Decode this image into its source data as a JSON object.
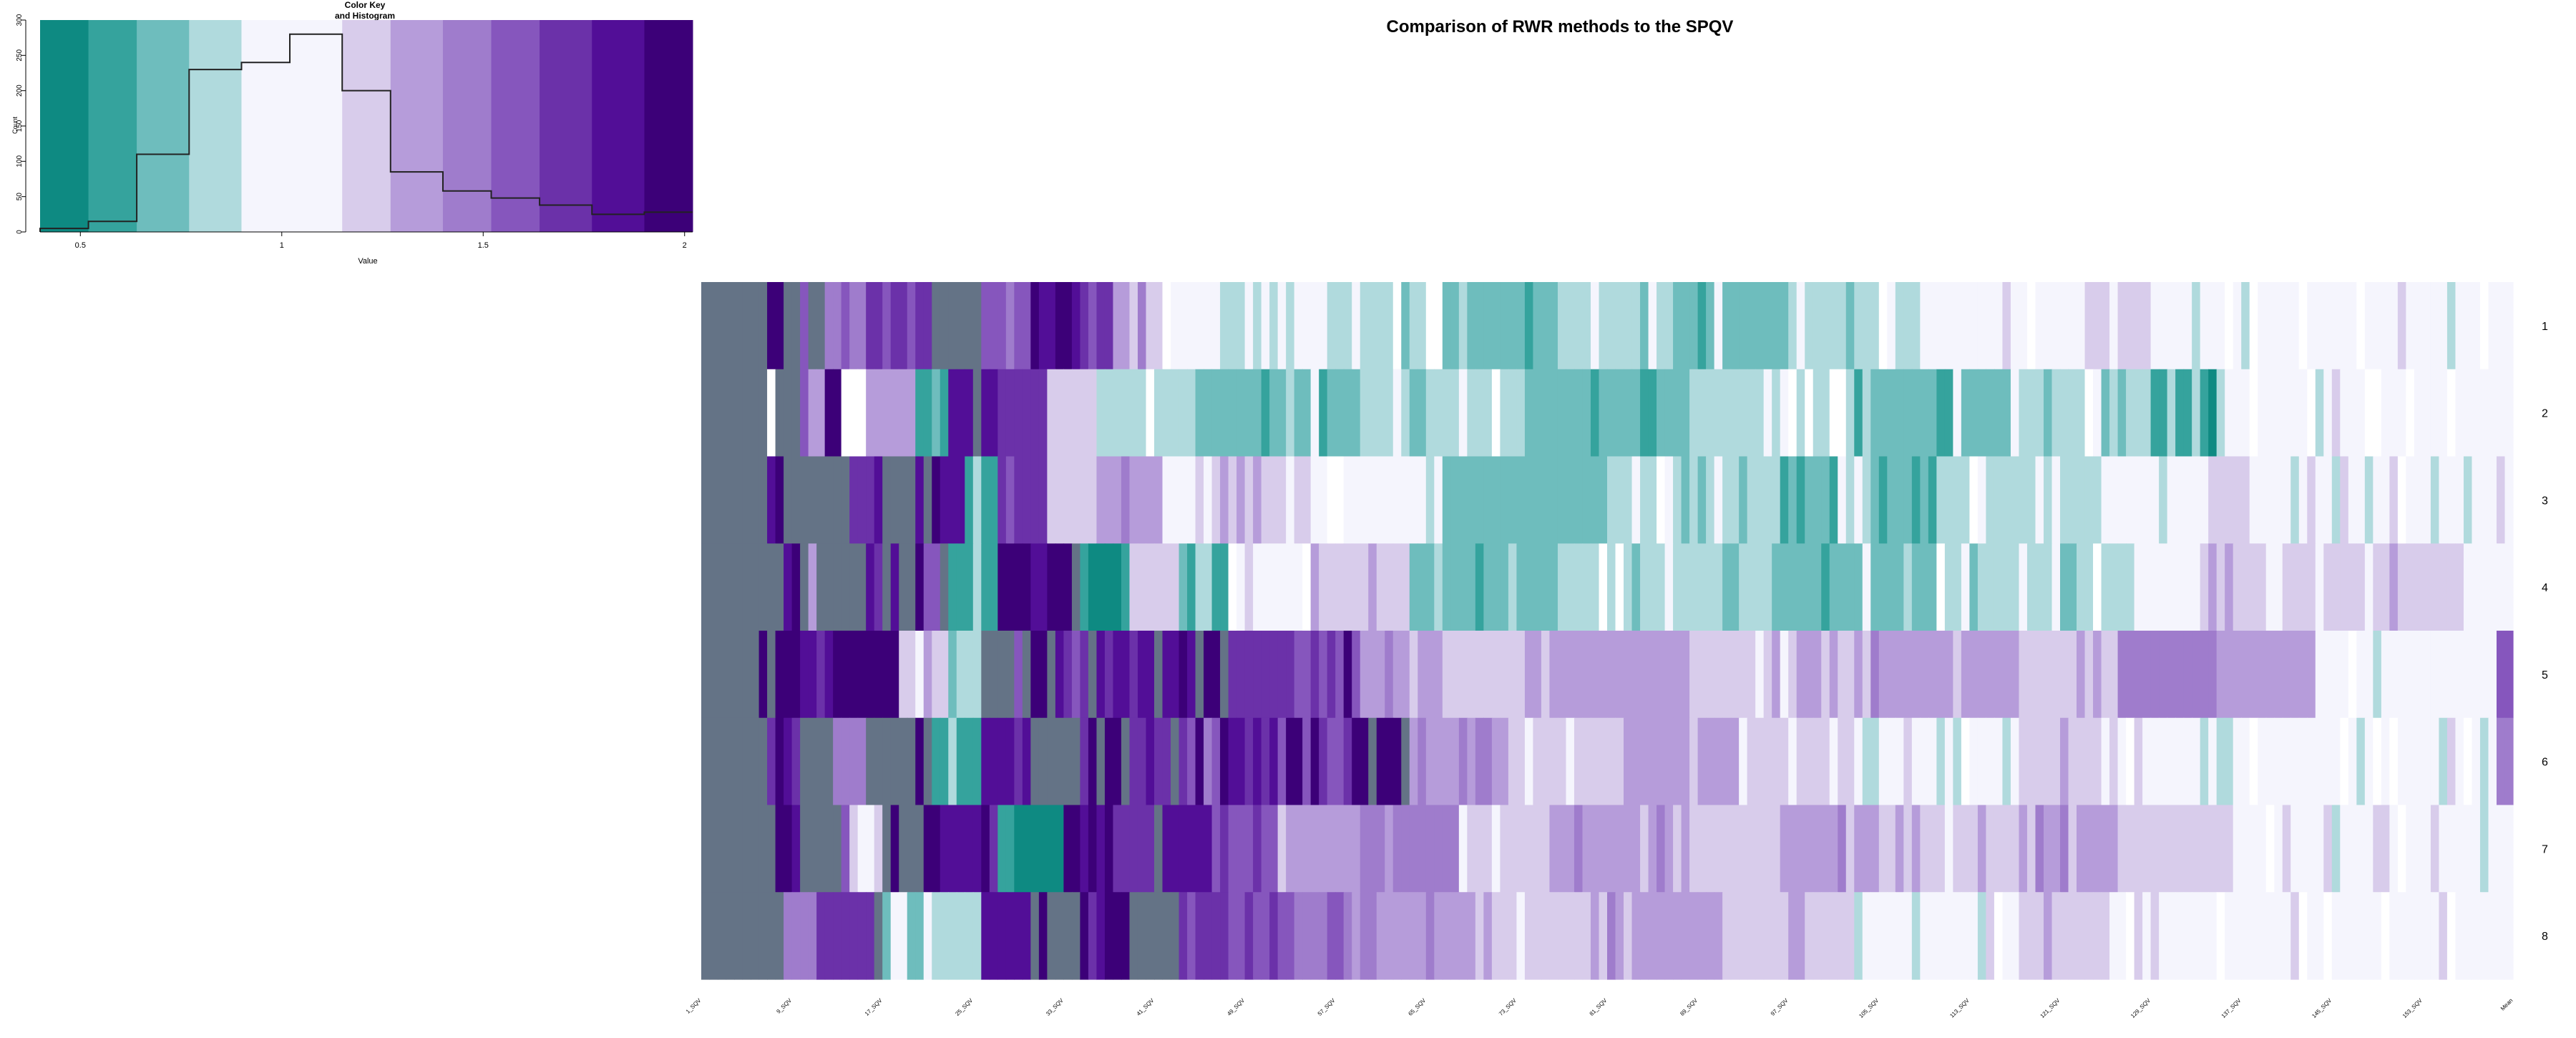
{
  "main_title": "Comparison of RWR methods to the SPQV",
  "color_key": {
    "title_line1": "Color Key",
    "title_line2": "and Histogram",
    "xlabel": "Value",
    "ylabel": "Count",
    "x_ticks": [
      "0.5",
      "1",
      "1.5",
      "2"
    ],
    "y_ticks": [
      "0",
      "50",
      "100",
      "150",
      "200",
      "250",
      "300"
    ],
    "breaks": [
      0.4,
      0.52,
      0.64,
      0.77,
      0.9,
      1.02,
      1.15,
      1.27,
      1.4,
      1.52,
      1.64,
      1.77,
      1.9,
      2.02
    ],
    "colors": [
      "#0e8a82",
      "#35a39d",
      "#6ebdbd",
      "#b0dadd",
      "#f5f5fd",
      "#f5f5fd",
      "#d8cceb",
      "#b69cda",
      "#9f7ccc",
      "#8656bd",
      "#6b31a9",
      "#520e97",
      "#3c0078"
    ],
    "histogram": [
      5,
      15,
      110,
      230,
      240,
      280,
      200,
      85,
      58,
      48,
      38,
      25,
      28
    ]
  },
  "chart_data": {
    "type": "heatmap",
    "title": "Comparison of RWR methods to the SPQV",
    "row_labels": [
      "1",
      "2",
      "3",
      "4",
      "5",
      "6",
      "7",
      "8"
    ],
    "column_labels": [
      "1_SQV",
      "9_SQV",
      "17_SQV",
      "25_SQV",
      "33_SQV",
      "41_SQV",
      "49_SQV",
      "57_SQV",
      "65_SQV",
      "73_SQV",
      "81_SQV",
      "89_SQV",
      "97_SQV",
      "105_SQV",
      "113_SQV",
      "121_SQV",
      "129_SQV",
      "137_SQV",
      "145_SQV",
      "153_SQV",
      "Mean"
    ],
    "value_range": [
      0.4,
      2.02
    ],
    "na_color": "#647386",
    "palette": [
      "#0e8a82",
      "#35a39d",
      "#6ebdbd",
      "#b0dadd",
      "#f5f5fd",
      "#d8cceb",
      "#b69cda",
      "#9f7ccc",
      "#8656bd",
      "#6b31a9",
      "#520e97",
      "#3c0078",
      "#ffffff"
    ],
    "columns": 220,
    "values_encoded": [
      "NNNNNNNNNNNNNNNNNNNNNNNNNNNNNNNNNNNNNNNNNNNNNNNNNNNNNNNNNNNNNNNNNNNNNNNNNNNNNNNNNNNNNNNNNNNNNNNNNNNNNNNNNNNNNNNNNNNNNNNNNNNNNNNNNNNNNNNNNNNNNNNNNNNNNNNNNNNNNNNNNNNNNNNNNNNNNNNNNNNNNNNNNNNNNNNNNNNNNNNNNNNNN",
      "NNNNNNNNNNNNNNNNNNNNNNNNNNNNNNNNNNNNNNNNNNNNNNNNNNNNNNNNNNNNNNNNNNNNNNNNNNNNNNNNNNNNNNNNNNNNNNNNNNNNNNNNNNNNNNNNNNNNNNNNNNNNNNNNNNNNNNNNNNNNNNNNNNNNNNNNNNNNNNNNNNNNNNNNNNNNNNNNNNNNNNNNNNNNNNNNNNNNNNNNNNNNN",
      "NNNNNNNNNNNNNNNNNNNNNNNNNNNNNNNNNNNNNNNNNNNNNNNNNNNNNNNNNNNNNNNNNNNNNNNNNNNNNNNNNNNNNNNNNNNNNNNNNNNNNNNNNNNNNNNNNNNNNNNNNNNNNNNNNNNNNNNNNNNNNNNNNNNNNNNNNNNNNNNNNNNNNNNNNNNNNNNNNNNNNNNNNNNNNNNNNNNNNNNNNNNNNN",
      "NNNNNNNNNNNNNNNNNNNNNNNNNNNNNNNNNNNNNNNNNNNNNNNNNNNNNNNNNNNNNNNNNNNNNNNNNNNNNNNNNNNNNNNNNNNNNNNNNNNNNNNNNNNNNNNNNNNNNNNNNNNNNNNNNNNNNNNNNNNNNNNNNNNNNNNNNNNNNNNNNNNNNNNNNNNNNNNNNNNNNNNNNNNNNNNNNNNNNNNNNNNNNN",
      "NNNNNNNNNNNNNNNNNNNNNNNNNNNNNNNNNNNNNNNNNNNNNNNNNNNNNNNNNNNNNNNNNNNNNNNNNNNNNNNNNNNNNNNNNNNNNNNNNNNNNNNNNNNNNNNNNNNNNNNNNNNNNNNNNNNNNNNNNNNNNNNNNNNNNNNNNNNNNNNNNNNNNNNNNNNNNNNNNNNNNNNNNNNNNNNNNNNNNNNNNNNNN",
      "NNNNNNNNNNNNNNNNNNNNNNNNNNNNNNNNNNNNNNNNNNNNNNNNNNNNNNNNNNNNNNNNNNNNNNNNNNNNNNNNNNNNNNNNNNNNNNNNNNNNNNNNNNNNNNNNNNNNNNNNNNNNNNNNNNNNNNNNNNNNNNNNNNNNNNNNNNNNNNNNNNNNNNNNNNNNNNNNNNNNNNNNNNNNNNNNNNNNNNNNNNNNNN",
      "NNNNNNNNNNNNNNNNNNNNNNNNNNNNNNNNNNNNNNNNNNNNNNNNNNNNNNNNNNNNNNNNNNNNNNNNNNNNNNNNNNNNNNNNNNNNNNNNNNNNNNNNNNNNNNNNNNNNNNNNNNNNNNNNNNNNNNNNNNNNNNNNNNNNNNNNNNNNNNNNNNNNNNNNNNNNNNNNNNNNNNNNNNNNNNNNNNNNNNNNNNNNN",
      "NNNNNNNNNNNNNNNNNNNNNNNNNNNNNNNNNNNNNNNNNNNNNNNNNNNNNNNNNNNNNNNNNNNNNNNNNNNNNNNNNNNNNNNNNNNNNNNNNNNNNNNNNNNNNNNNNNNNNNNNNNNNNNNNNNNNNNNNNNNNNNNNNNNNNNNNNNNNNNNNNNNNNNNNNNNNNNNNNNNNNNNNNNNNNNNNNNNNNNNNNNNNN"
    ],
    "row_profiles": [
      {
        "row": "1",
        "segments": [
          [
            0,
            9,
            "N"
          ],
          [
            9,
            10,
            "B"
          ],
          [
            10,
            15,
            "N"
          ],
          [
            15,
            20,
            "7"
          ],
          [
            20,
            28,
            "9"
          ],
          [
            28,
            34,
            "N"
          ],
          [
            34,
            40,
            "8"
          ],
          [
            40,
            46,
            "A"
          ],
          [
            46,
            50,
            "9"
          ],
          [
            50,
            56,
            "6"
          ],
          [
            56,
            62,
            "4"
          ],
          [
            62,
            70,
            "3"
          ],
          [
            70,
            76,
            "4"
          ],
          [
            76,
            90,
            "3"
          ],
          [
            90,
            104,
            "2"
          ],
          [
            104,
            118,
            "3"
          ],
          [
            118,
            132,
            "2"
          ],
          [
            132,
            148,
            "3"
          ],
          [
            148,
            168,
            "4"
          ],
          [
            168,
            176,
            "5"
          ],
          [
            176,
            214,
            "4"
          ],
          [
            214,
            218,
            "4"
          ],
          [
            218,
            220,
            "4"
          ]
        ]
      },
      {
        "row": "2",
        "segments": [
          [
            0,
            8,
            "N"
          ],
          [
            8,
            9,
            "C"
          ],
          [
            9,
            13,
            "N"
          ],
          [
            13,
            15,
            "6"
          ],
          [
            15,
            17,
            "B"
          ],
          [
            17,
            20,
            "C"
          ],
          [
            20,
            26,
            "6"
          ],
          [
            26,
            30,
            "1"
          ],
          [
            30,
            36,
            "A"
          ],
          [
            36,
            42,
            "9"
          ],
          [
            42,
            48,
            "5"
          ],
          [
            48,
            60,
            "3"
          ],
          [
            60,
            80,
            "2"
          ],
          [
            80,
            100,
            "3"
          ],
          [
            100,
            120,
            "2"
          ],
          [
            120,
            140,
            "3"
          ],
          [
            140,
            160,
            "2"
          ],
          [
            160,
            176,
            "3"
          ],
          [
            176,
            184,
            "1"
          ],
          [
            184,
            214,
            "4"
          ],
          [
            214,
            220,
            "4"
          ]
        ]
      },
      {
        "row": "3",
        "segments": [
          [
            0,
            8,
            "N"
          ],
          [
            8,
            10,
            "B"
          ],
          [
            10,
            18,
            "N"
          ],
          [
            18,
            22,
            "9"
          ],
          [
            22,
            26,
            "N"
          ],
          [
            26,
            32,
            "A"
          ],
          [
            32,
            36,
            "1"
          ],
          [
            36,
            42,
            "9"
          ],
          [
            42,
            48,
            "5"
          ],
          [
            48,
            56,
            "6"
          ],
          [
            56,
            62,
            "4"
          ],
          [
            62,
            74,
            "5"
          ],
          [
            74,
            90,
            "4"
          ],
          [
            90,
            110,
            "2"
          ],
          [
            110,
            130,
            "3"
          ],
          [
            130,
            150,
            "2"
          ],
          [
            150,
            170,
            "3"
          ],
          [
            170,
            184,
            "4"
          ],
          [
            184,
            188,
            "5"
          ],
          [
            188,
            214,
            "4"
          ],
          [
            214,
            220,
            "4"
          ]
        ]
      },
      {
        "row": "4",
        "segments": [
          [
            0,
            10,
            "N"
          ],
          [
            10,
            12,
            "B"
          ],
          [
            12,
            20,
            "N"
          ],
          [
            20,
            24,
            "9"
          ],
          [
            24,
            30,
            "N"
          ],
          [
            30,
            36,
            "1"
          ],
          [
            36,
            40,
            "B"
          ],
          [
            40,
            46,
            "A"
          ],
          [
            46,
            52,
            "0"
          ],
          [
            52,
            58,
            "5"
          ],
          [
            58,
            64,
            "1"
          ],
          [
            64,
            74,
            "4"
          ],
          [
            74,
            86,
            "5"
          ],
          [
            86,
            104,
            "2"
          ],
          [
            104,
            130,
            "3"
          ],
          [
            130,
            150,
            "2"
          ],
          [
            150,
            174,
            "3"
          ],
          [
            174,
            182,
            "4"
          ],
          [
            182,
            214,
            "5"
          ],
          [
            214,
            220,
            "4"
          ]
        ]
      },
      {
        "row": "5",
        "segments": [
          [
            0,
            8,
            "N"
          ],
          [
            8,
            12,
            "B"
          ],
          [
            12,
            18,
            "A"
          ],
          [
            18,
            24,
            "B"
          ],
          [
            24,
            30,
            "5"
          ],
          [
            30,
            34,
            "3"
          ],
          [
            34,
            42,
            "N"
          ],
          [
            42,
            50,
            "9"
          ],
          [
            50,
            58,
            "A"
          ],
          [
            58,
            64,
            "B"
          ],
          [
            64,
            72,
            "9"
          ],
          [
            72,
            80,
            "8"
          ],
          [
            80,
            90,
            "6"
          ],
          [
            90,
            100,
            "5"
          ],
          [
            100,
            120,
            "6"
          ],
          [
            120,
            140,
            "5"
          ],
          [
            140,
            160,
            "6"
          ],
          [
            160,
            172,
            "5"
          ],
          [
            172,
            184,
            "7"
          ],
          [
            184,
            196,
            "6"
          ],
          [
            196,
            214,
            "4"
          ],
          [
            214,
            218,
            "4"
          ],
          [
            218,
            220,
            "8"
          ]
        ]
      },
      {
        "row": "6",
        "segments": [
          [
            0,
            8,
            "N"
          ],
          [
            8,
            12,
            "B"
          ],
          [
            12,
            16,
            "N"
          ],
          [
            16,
            20,
            "7"
          ],
          [
            20,
            28,
            "N"
          ],
          [
            28,
            34,
            "1"
          ],
          [
            34,
            40,
            "A"
          ],
          [
            40,
            46,
            "N"
          ],
          [
            46,
            52,
            "B"
          ],
          [
            52,
            58,
            "9"
          ],
          [
            58,
            64,
            "8"
          ],
          [
            64,
            70,
            "A"
          ],
          [
            70,
            78,
            "8"
          ],
          [
            78,
            86,
            "B"
          ],
          [
            86,
            98,
            "6"
          ],
          [
            98,
            112,
            "5"
          ],
          [
            112,
            126,
            "6"
          ],
          [
            126,
            140,
            "5"
          ],
          [
            140,
            160,
            "4"
          ],
          [
            160,
            170,
            "5"
          ],
          [
            170,
            184,
            "4"
          ],
          [
            184,
            186,
            "3"
          ],
          [
            186,
            214,
            "4"
          ],
          [
            214,
            218,
            "4"
          ],
          [
            218,
            220,
            "7"
          ]
        ]
      },
      {
        "row": "7",
        "segments": [
          [
            0,
            8,
            "N"
          ],
          [
            8,
            12,
            "B"
          ],
          [
            12,
            18,
            "N"
          ],
          [
            18,
            22,
            "5"
          ],
          [
            22,
            28,
            "N"
          ],
          [
            28,
            36,
            "A"
          ],
          [
            36,
            44,
            "0"
          ],
          [
            44,
            50,
            "B"
          ],
          [
            50,
            56,
            "9"
          ],
          [
            56,
            62,
            "A"
          ],
          [
            62,
            70,
            "8"
          ],
          [
            70,
            80,
            "6"
          ],
          [
            80,
            92,
            "7"
          ],
          [
            92,
            104,
            "5"
          ],
          [
            104,
            118,
            "6"
          ],
          [
            118,
            132,
            "5"
          ],
          [
            132,
            146,
            "6"
          ],
          [
            146,
            160,
            "5"
          ],
          [
            160,
            172,
            "6"
          ],
          [
            172,
            186,
            "5"
          ],
          [
            186,
            214,
            "4"
          ],
          [
            214,
            220,
            "4"
          ]
        ]
      },
      {
        "row": "8",
        "segments": [
          [
            0,
            10,
            "N"
          ],
          [
            10,
            14,
            "7"
          ],
          [
            14,
            22,
            "9"
          ],
          [
            22,
            28,
            "2"
          ],
          [
            28,
            34,
            "3"
          ],
          [
            34,
            40,
            "A"
          ],
          [
            40,
            46,
            "N"
          ],
          [
            46,
            52,
            "B"
          ],
          [
            52,
            58,
            "N"
          ],
          [
            58,
            64,
            "9"
          ],
          [
            64,
            72,
            "8"
          ],
          [
            72,
            82,
            "7"
          ],
          [
            82,
            96,
            "6"
          ],
          [
            96,
            110,
            "5"
          ],
          [
            110,
            124,
            "6"
          ],
          [
            124,
            140,
            "5"
          ],
          [
            140,
            160,
            "4"
          ],
          [
            160,
            170,
            "5"
          ],
          [
            170,
            196,
            "4"
          ],
          [
            196,
            214,
            "4"
          ],
          [
            214,
            220,
            "4"
          ]
        ]
      }
    ]
  }
}
